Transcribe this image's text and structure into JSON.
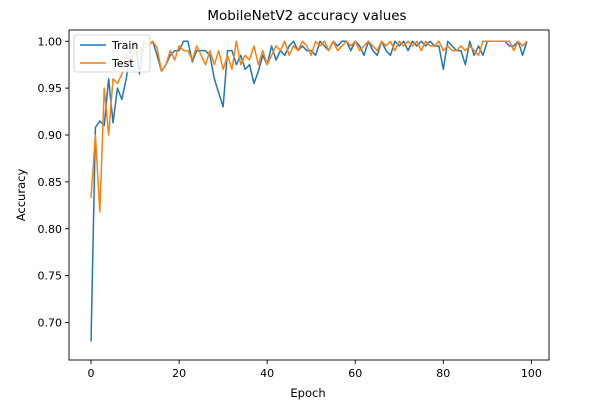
{
  "chart_data": {
    "type": "line",
    "title": "MobileNetV2 accuracy values",
    "xlabel": "Epoch",
    "ylabel": "Accuracy",
    "xlim": [
      -5,
      104
    ],
    "ylim": [
      0.66,
      1.012
    ],
    "xticks": [
      0,
      20,
      40,
      60,
      80,
      100
    ],
    "yticks": [
      0.7,
      0.75,
      0.8,
      0.85,
      0.9,
      0.95,
      1.0
    ],
    "xtick_labels": [
      "0",
      "20",
      "40",
      "60",
      "80",
      "100"
    ],
    "ytick_labels": [
      "0.70",
      "0.75",
      "0.80",
      "0.85",
      "0.90",
      "0.95",
      "1.00"
    ],
    "grid": false,
    "legend_position": "top-left",
    "x": [
      0,
      1,
      2,
      3,
      4,
      5,
      6,
      7,
      8,
      9,
      10,
      11,
      12,
      13,
      14,
      15,
      16,
      17,
      18,
      19,
      20,
      21,
      22,
      23,
      24,
      25,
      26,
      27,
      28,
      29,
      30,
      31,
      32,
      33,
      34,
      35,
      36,
      37,
      38,
      39,
      40,
      41,
      42,
      43,
      44,
      45,
      46,
      47,
      48,
      49,
      50,
      51,
      52,
      53,
      54,
      55,
      56,
      57,
      58,
      59,
      60,
      61,
      62,
      63,
      64,
      65,
      66,
      67,
      68,
      69,
      70,
      71,
      72,
      73,
      74,
      75,
      76,
      77,
      78,
      79,
      80,
      81,
      82,
      83,
      84,
      85,
      86,
      87,
      88,
      89,
      90,
      91,
      92,
      93,
      94,
      95,
      96,
      97,
      98,
      99
    ],
    "series": [
      {
        "name": "Train",
        "color": "#1f77b4",
        "values": [
          0.68,
          0.908,
          0.915,
          0.91,
          0.96,
          0.913,
          0.95,
          0.938,
          0.96,
          0.99,
          1.0,
          0.965,
          1.0,
          0.995,
          1.0,
          0.985,
          0.968,
          0.975,
          0.985,
          0.99,
          0.99,
          1.0,
          1.0,
          0.978,
          0.99,
          0.99,
          0.99,
          0.985,
          0.96,
          0.945,
          0.93,
          0.99,
          0.99,
          0.975,
          0.985,
          0.97,
          0.975,
          0.955,
          0.968,
          0.985,
          0.975,
          0.995,
          0.98,
          0.99,
          0.985,
          0.995,
          1.0,
          0.99,
          0.995,
          0.99,
          0.99,
          0.985,
          1.0,
          0.995,
          0.99,
          1.0,
          0.995,
          1.0,
          1.0,
          0.99,
          1.0,
          0.995,
          0.985,
          1.0,
          0.99,
          0.985,
          1.0,
          0.99,
          0.985,
          1.0,
          0.995,
          1.0,
          0.99,
          1.0,
          0.995,
          1.0,
          0.995,
          1.0,
          0.995,
          0.995,
          0.97,
          1.0,
          0.995,
          0.99,
          0.99,
          0.975,
          1.0,
          0.985,
          0.995,
          0.985,
          1.0,
          1.0,
          1.0,
          1.0,
          1.0,
          0.995,
          0.995,
          1.0,
          0.985,
          1.0
        ]
      },
      {
        "name": "Test",
        "color": "#ff7f0e",
        "values": [
          0.833,
          0.9,
          0.818,
          0.95,
          0.9,
          0.96,
          0.955,
          0.965,
          0.985,
          0.975,
          0.995,
          0.985,
          1.0,
          0.995,
          1.0,
          0.993,
          0.968,
          0.975,
          0.99,
          0.98,
          0.995,
          0.99,
          0.99,
          0.98,
          0.995,
          0.985,
          0.975,
          0.99,
          0.975,
          0.99,
          0.97,
          0.985,
          0.97,
          1.0,
          0.975,
          0.985,
          0.98,
          0.995,
          0.975,
          0.99,
          0.975,
          0.985,
          0.995,
          0.99,
          1.0,
          0.985,
          0.995,
          0.99,
          1.0,
          0.995,
          0.985,
          1.0,
          0.995,
          1.0,
          0.99,
          1.0,
          0.99,
          0.995,
          1.0,
          0.995,
          1.0,
          0.99,
          0.995,
          1.0,
          0.995,
          0.99,
          1.0,
          0.995,
          1.0,
          0.99,
          1.0,
          0.995,
          1.0,
          0.995,
          1.0,
          0.99,
          1.0,
          0.995,
          0.995,
          1.0,
          0.99,
          0.995,
          0.99,
          0.99,
          0.995,
          0.99,
          0.995,
          0.99,
          0.985,
          1.0,
          1.0,
          1.0,
          1.0,
          1.0,
          1.0,
          1.0,
          0.99,
          1.0,
          0.995,
          1.0
        ]
      }
    ]
  }
}
